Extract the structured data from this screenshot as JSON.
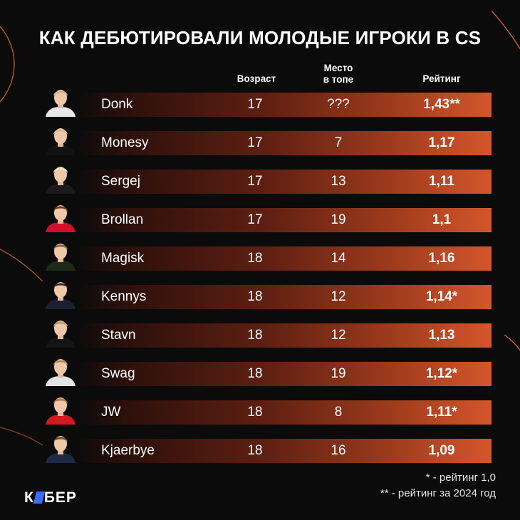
{
  "title": "КАК ДЕБЮТИРОВАЛИ МОЛОДЫЕ ИГРОКИ В CS",
  "headers": {
    "age": "Возраст",
    "place_l1": "Место",
    "place_l2": "в топе",
    "rating": "Рейтинг"
  },
  "rows": [
    {
      "name": "Donk",
      "age": "17",
      "place": "???",
      "rating": "1,43**",
      "shirt": "#e8e8e8",
      "hair": "#c9b48a"
    },
    {
      "name": "Monesy",
      "age": "17",
      "place": "7",
      "rating": "1,17",
      "shirt": "#111111",
      "hair": "#d8c08a"
    },
    {
      "name": "Sergej",
      "age": "17",
      "place": "13",
      "rating": "1,11",
      "shirt": "#1a1a1a",
      "hair": "#efe2b8"
    },
    {
      "name": "Brollan",
      "age": "17",
      "place": "19",
      "rating": "1,1",
      "shirt": "#d0102a",
      "hair": "#6a3b20"
    },
    {
      "name": "Magisk",
      "age": "18",
      "place": "14",
      "rating": "1,16",
      "shirt": "#1d2a18",
      "hair": "#8a6a3c"
    },
    {
      "name": "Kennys",
      "age": "18",
      "place": "12",
      "rating": "1,14*",
      "shirt": "#1c2030",
      "hair": "#3a2a20"
    },
    {
      "name": "Stavn",
      "age": "18",
      "place": "12",
      "rating": "1,13",
      "shirt": "#151515",
      "hair": "#c49a64"
    },
    {
      "name": "Swag",
      "age": "18",
      "place": "19",
      "rating": "1,12*",
      "shirt": "#e4e4e4",
      "hair": "#b88a52"
    },
    {
      "name": "JW",
      "age": "18",
      "place": "8",
      "rating": "1,11*",
      "shirt": "#d01a20",
      "hair": "#b57b4a"
    },
    {
      "name": "Kjaerbye",
      "age": "18",
      "place": "16",
      "rating": "1,09",
      "shirt": "#1c2a44",
      "hair": "#6a4a2c"
    }
  ],
  "footnotes": {
    "single": "* - рейтинг 1,0",
    "double": "** - рейтинг за 2024 год"
  },
  "logo": {
    "left": "К",
    "right": "БЕР"
  }
}
